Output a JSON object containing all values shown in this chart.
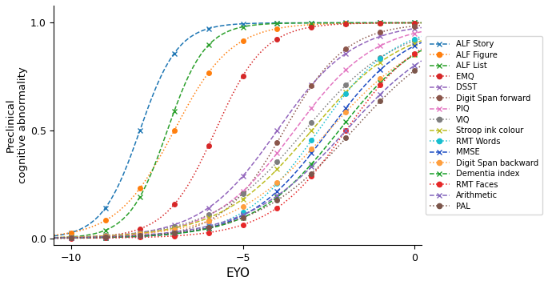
{
  "series": [
    {
      "name": "ALF Story",
      "color": "#1f77b4",
      "linestyle": "--",
      "marker": "x",
      "mu": -8.0,
      "k": 1.8
    },
    {
      "name": "ALF Figure",
      "color": "#ff7f0e",
      "linestyle": ":",
      "marker": "o",
      "mu": -7.0,
      "k": 1.2
    },
    {
      "name": "ALF List",
      "color": "#2ca02c",
      "linestyle": "--",
      "marker": "x",
      "mu": -7.2,
      "k": 1.8
    },
    {
      "name": "EMQ",
      "color": "#d62728",
      "linestyle": ":",
      "marker": "o",
      "mu": -5.8,
      "k": 1.4
    },
    {
      "name": "DSST",
      "color": "#9467bd",
      "linestyle": "--",
      "marker": "x",
      "mu": -4.0,
      "k": 0.9
    },
    {
      "name": "Digit Span forward",
      "color": "#8c564b",
      "linestyle": ":",
      "marker": "o",
      "mu": -3.8,
      "k": 1.1
    },
    {
      "name": "PIQ",
      "color": "#e377c2",
      "linestyle": "--",
      "marker": "x",
      "mu": -3.5,
      "k": 0.85
    },
    {
      "name": "VIQ",
      "color": "#7f7f7f",
      "linestyle": ":",
      "marker": "o",
      "mu": -3.2,
      "k": 0.75
    },
    {
      "name": "Stroop ink colour",
      "color": "#bcbd22",
      "linestyle": "--",
      "marker": "x",
      "mu": -3.0,
      "k": 0.75
    },
    {
      "name": "RMT Words",
      "color": "#17becf",
      "linestyle": ":",
      "marker": "o",
      "mu": -2.8,
      "k": 0.9
    },
    {
      "name": "MMSE",
      "color": "#1f4fc4",
      "linestyle": "--",
      "marker": "x",
      "mu": -2.5,
      "k": 0.85
    },
    {
      "name": "Digit Span backward",
      "color": "#ff9f3e",
      "linestyle": ":",
      "marker": "o",
      "mu": -2.5,
      "k": 0.7
    },
    {
      "name": "Dementia index",
      "color": "#1ca02c",
      "linestyle": "--",
      "marker": "x",
      "mu": -2.2,
      "k": 0.8
    },
    {
      "name": "RMT Faces",
      "color": "#e62728",
      "linestyle": ":",
      "marker": "o",
      "mu": -2.0,
      "k": 0.9
    },
    {
      "name": "Arithmetic",
      "color": "#8467bd",
      "linestyle": "--",
      "marker": "x",
      "mu": -2.0,
      "k": 0.7
    },
    {
      "name": "PAL",
      "color": "#7c564b",
      "linestyle": ":",
      "marker": "o",
      "mu": -1.8,
      "k": 0.7
    }
  ],
  "xlabel": "EYO",
  "ylabel": "Preclinical\ncognitive abnormality",
  "xlim": [
    -10.5,
    0.2
  ],
  "ylim": [
    -0.03,
    1.08
  ],
  "xticks": [
    -10,
    -5,
    0
  ],
  "yticks": [
    0,
    0.5,
    1
  ],
  "figsize": [
    6.85,
    3.56
  ],
  "dpi": 100
}
